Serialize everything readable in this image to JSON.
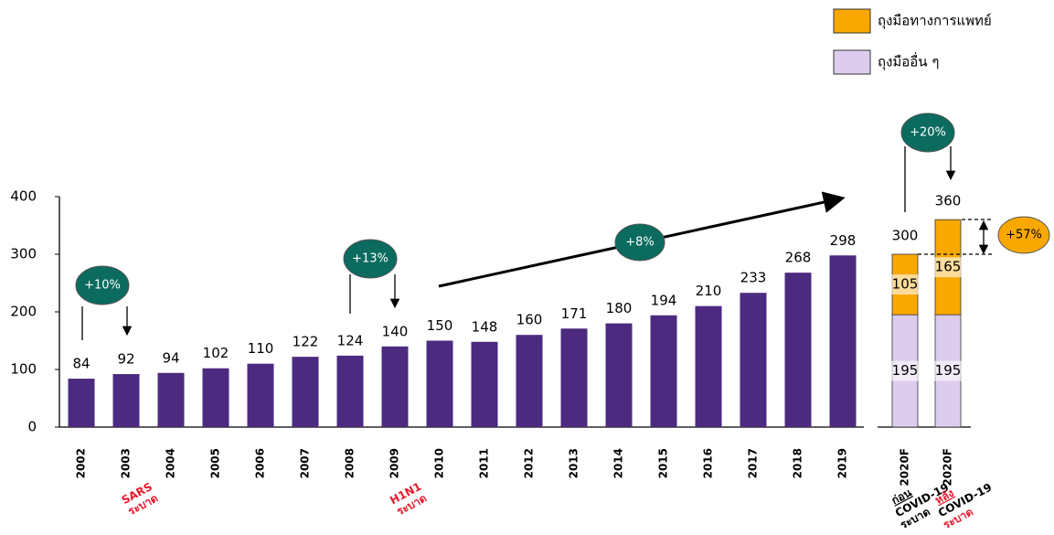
{
  "chart_data": [
    {
      "type": "bar",
      "categories": [
        "2002",
        "2003",
        "2004",
        "2005",
        "2006",
        "2007",
        "2008",
        "2009",
        "2010",
        "2011",
        "2012",
        "2013",
        "2014",
        "2015",
        "2016",
        "2017",
        "2018",
        "2019"
      ],
      "values": [
        84,
        92,
        94,
        102,
        110,
        122,
        124,
        140,
        150,
        148,
        160,
        171,
        180,
        194,
        210,
        233,
        268,
        298
      ],
      "color": "#4b2a7f",
      "ylim": [
        0,
        400
      ],
      "yticks": [
        0,
        100,
        200,
        300,
        400
      ],
      "annotations": [
        "+10%",
        "+13%",
        "+8%"
      ],
      "events": [
        {
          "label": "SARS",
          "note": "ระบาด"
        },
        {
          "label": "H1N1",
          "note": "ระบาด"
        }
      ]
    },
    {
      "type": "stacked_bar",
      "categories": [
        "2020F",
        "2020F"
      ],
      "series": [
        {
          "name": "ถุงมืออื่น ๆ",
          "color": "#dccdee",
          "values": [
            195,
            195
          ]
        },
        {
          "name": "ถุงมือทางการแพทย์",
          "color": "#f9a800",
          "values": [
            105,
            165
          ]
        }
      ],
      "totals": [
        300,
        360
      ],
      "ylim": [
        0,
        400
      ],
      "annotations": [
        "+20%",
        "+57%"
      ],
      "notes": [
        {
          "word": "ก่อน",
          "rest": "COVID-19",
          "note": "ระบาด"
        },
        {
          "word": "หลัง",
          "rest": "COVID-19",
          "note": "ระบาด"
        }
      ]
    }
  ]
}
